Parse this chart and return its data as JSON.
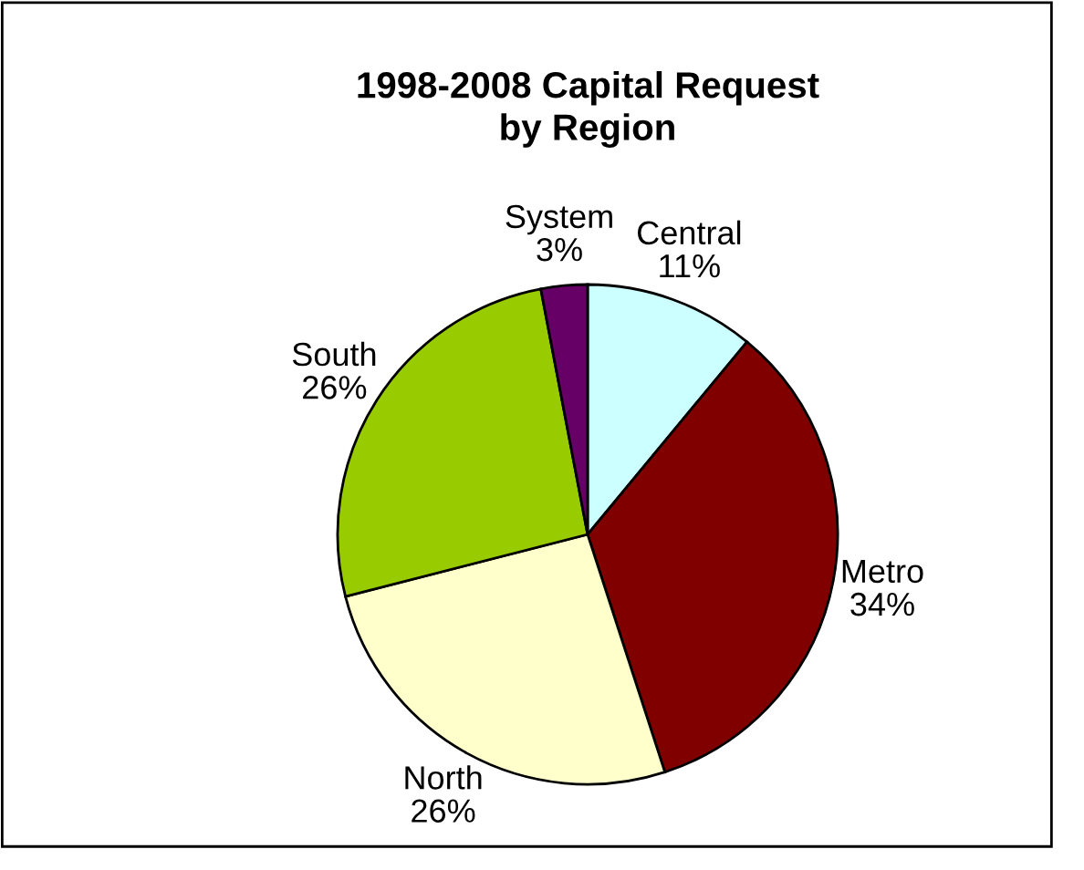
{
  "chart_data": {
    "type": "pie",
    "title": "1998-2008 Capital Request\nby Region",
    "categories": [
      "Central",
      "Metro",
      "North",
      "South",
      "System"
    ],
    "values": [
      11,
      34,
      26,
      26,
      3
    ],
    "value_labels": [
      "11%",
      "34%",
      "26%",
      "26%",
      "3%"
    ],
    "colors": [
      "#ccffff",
      "#800000",
      "#ffffcc",
      "#99cc00",
      "#660066"
    ]
  }
}
